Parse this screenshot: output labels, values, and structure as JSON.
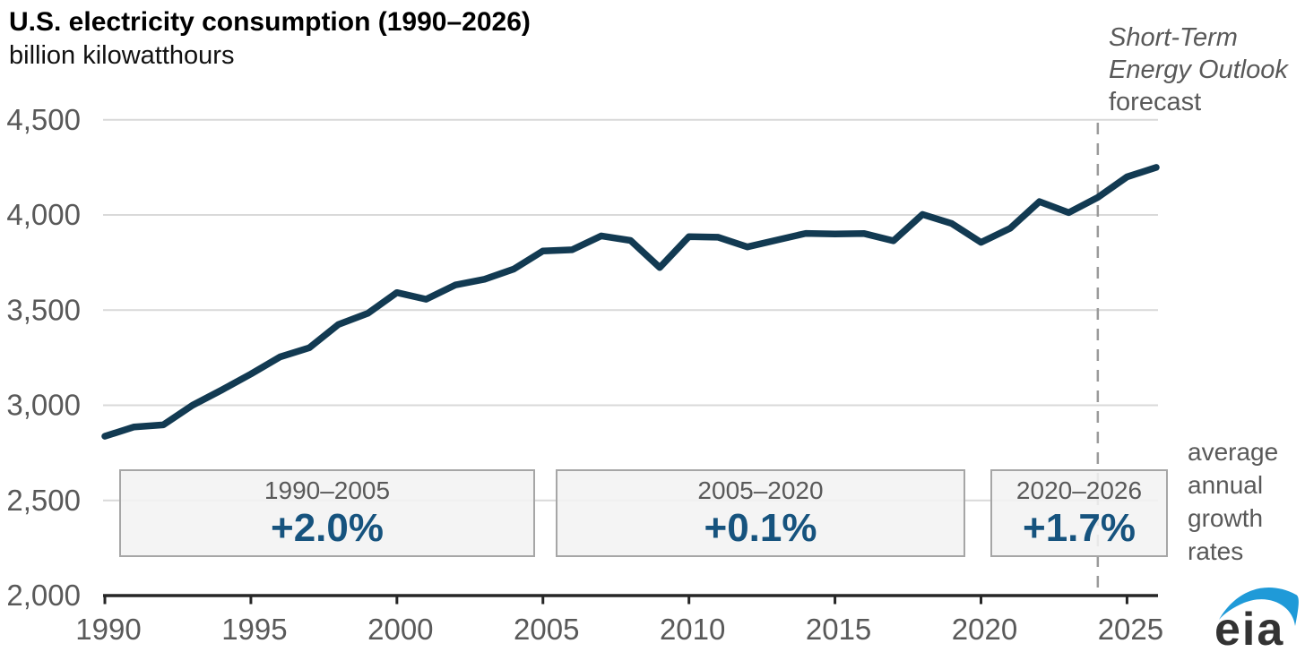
{
  "header": {
    "title": "U.S. electricity consumption (1990–2026)",
    "subtitle": "billion kilowatthours"
  },
  "forecast_label": {
    "line1": "Short-Term",
    "line2": "Energy Outlook",
    "line3": "forecast"
  },
  "growth_note": {
    "line1": "average",
    "line2": "annual",
    "line3": "growth",
    "line4": "rates"
  },
  "logo": {
    "text": "eia"
  },
  "colors": {
    "line": "#123a52",
    "grid": "#d9d9d9",
    "axis": "#262626",
    "tick_label": "#595959",
    "muted_text": "#595959",
    "box_fill": "#f2f2f2",
    "box_border": "#a6a6a6",
    "rate_blue": "#16537e",
    "forecast_line": "#9a9a9a",
    "logo_blue": "#1f9ad8",
    "logo_text": "#333333"
  },
  "chart_data": {
    "type": "line",
    "title": "U.S. electricity consumption (1990–2026)",
    "ylabel": "billion kilowatthours",
    "series_name": "U.S. electricity consumption",
    "x": [
      1990,
      1991,
      1992,
      1993,
      1994,
      1995,
      1996,
      1997,
      1998,
      1999,
      2000,
      2001,
      2002,
      2003,
      2004,
      2005,
      2006,
      2007,
      2008,
      2009,
      2010,
      2011,
      2012,
      2013,
      2014,
      2015,
      2016,
      2017,
      2018,
      2019,
      2020,
      2021,
      2022,
      2023,
      2024,
      2025,
      2026
    ],
    "values": [
      2837,
      2886,
      2897,
      3000,
      3080,
      3164,
      3254,
      3302,
      3425,
      3483,
      3592,
      3557,
      3632,
      3662,
      3716,
      3811,
      3817,
      3890,
      3866,
      3724,
      3886,
      3883,
      3832,
      3868,
      3903,
      3900,
      3902,
      3864,
      4003,
      3955,
      3856,
      3930,
      4070,
      4012,
      4092,
      4200,
      4250
    ],
    "ylim": [
      2000,
      4500
    ],
    "yticks": [
      2000,
      2500,
      3000,
      3500,
      4000,
      4500
    ],
    "xticks": [
      1990,
      1995,
      2000,
      2005,
      2010,
      2015,
      2020,
      2025
    ],
    "grid": true,
    "forecast_start_year": 2024,
    "forecast_note": "Short-Term Energy Outlook forecast",
    "annotations": [
      {
        "period": "1990–2005",
        "growth": "+2.0%"
      },
      {
        "period": "2005–2020",
        "growth": "+0.1%"
      },
      {
        "period": "2020–2026",
        "growth": "+1.7%"
      }
    ],
    "annotations_caption": "average annual growth rates"
  }
}
